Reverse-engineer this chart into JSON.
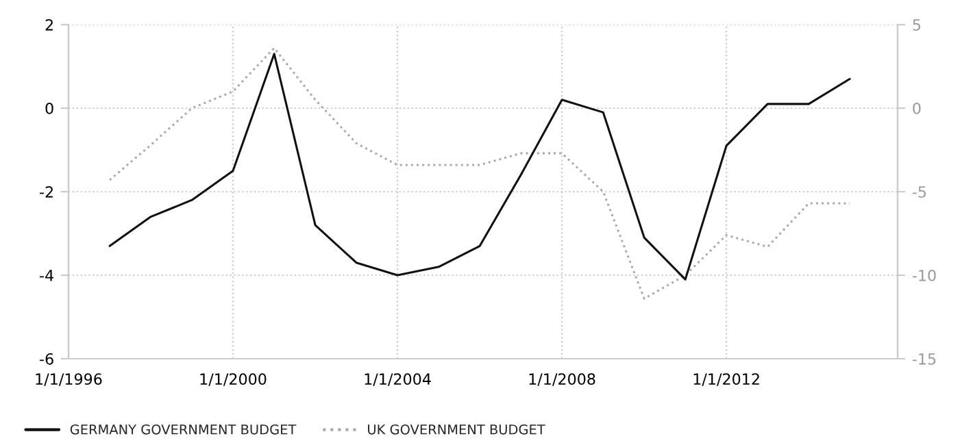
{
  "chart_data": {
    "type": "line",
    "x": [
      "1997-01-01",
      "1998-01-01",
      "1999-01-01",
      "2000-01-01",
      "2001-01-01",
      "2002-01-01",
      "2003-01-01",
      "2004-01-01",
      "2005-01-01",
      "2006-01-01",
      "2007-01-01",
      "2008-01-01",
      "2009-01-01",
      "2010-01-01",
      "2011-01-01",
      "2012-01-01",
      "2013-01-01",
      "2014-01-01",
      "2015-01-01"
    ],
    "series": [
      {
        "name": "GERMANY GOVERNMENT BUDGET",
        "color": "#111111",
        "line_style": "solid",
        "values": [
          -3.3,
          -2.6,
          -2.2,
          -1.5,
          1.3,
          -2.8,
          -3.7,
          -4.0,
          -3.8,
          -3.3,
          -1.6,
          0.2,
          -0.1,
          -3.1,
          -4.1,
          -0.9,
          0.1,
          0.1,
          0.7
        ]
      },
      {
        "name": "UK GOVERNMENT BUDGET",
        "color": "#aaaaaa",
        "line_style": "dotted",
        "axis": "y2",
        "values": [
          -4.3,
          -2.2,
          0.0,
          1.0,
          3.6,
          0.5,
          -2.1,
          -3.4,
          -3.4,
          -3.4,
          -2.7,
          -2.7,
          -5.0,
          -11.4,
          -10.0,
          -7.6,
          -8.3,
          -5.7,
          -5.7
        ]
      }
    ],
    "xlim": [
      "1996-01-01",
      "2016-03-01"
    ],
    "xticks": [
      {
        "value": "1996-01-01",
        "label": "1/1/1996"
      },
      {
        "value": "2000-01-01",
        "label": "1/1/2000"
      },
      {
        "value": "2004-01-01",
        "label": "1/1/2004"
      },
      {
        "value": "2008-01-01",
        "label": "1/1/2008"
      },
      {
        "value": "2012-01-01",
        "label": "1/1/2012"
      }
    ],
    "ylim": [
      -6,
      2
    ],
    "yticks": [
      -6,
      -4,
      -2,
      0,
      2
    ],
    "y2lim": [
      -15,
      5
    ],
    "y2ticks": [
      -15,
      -10,
      -5,
      0,
      5
    ],
    "grid": true,
    "legend": "bottom left"
  }
}
